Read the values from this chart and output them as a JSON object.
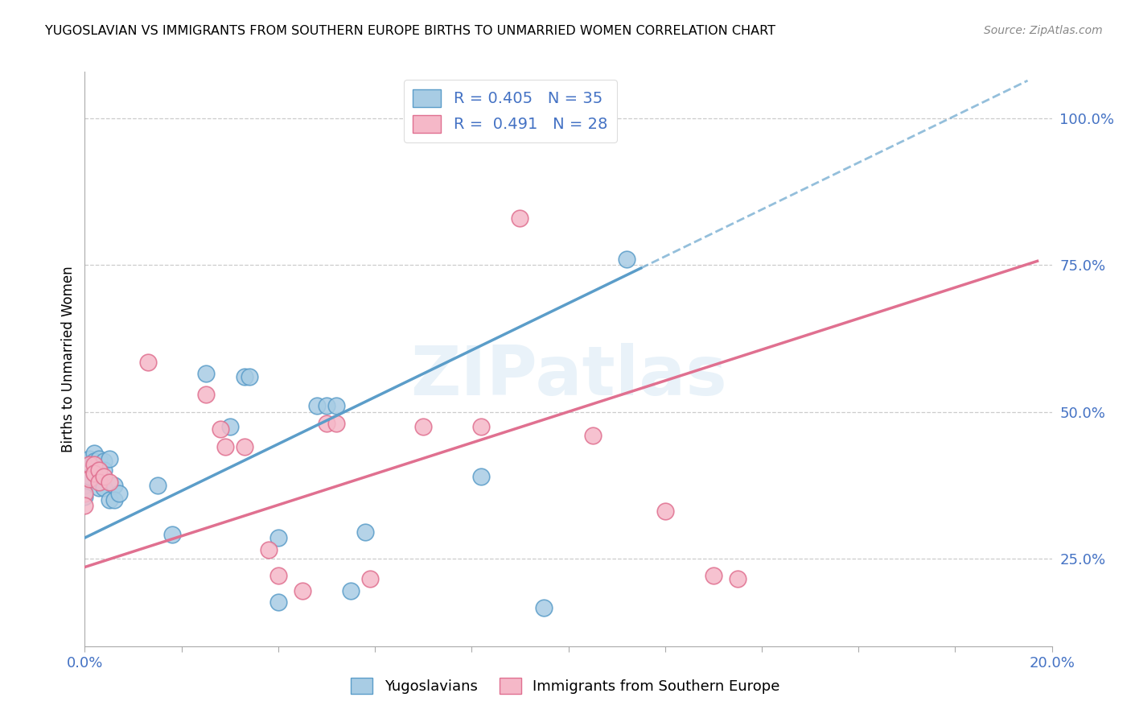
{
  "title": "YUGOSLAVIAN VS IMMIGRANTS FROM SOUTHERN EUROPE BIRTHS TO UNMARRIED WOMEN CORRELATION CHART",
  "source": "Source: ZipAtlas.com",
  "ylabel": "Births to Unmarried Women",
  "ytick_labels": [
    "25.0%",
    "50.0%",
    "75.0%",
    "100.0%"
  ],
  "ytick_values": [
    0.25,
    0.5,
    0.75,
    1.0
  ],
  "blue_R": 0.405,
  "blue_N": 35,
  "pink_R": 0.491,
  "pink_N": 28,
  "legend_label_blue": "Yugoslavians",
  "legend_label_pink": "Immigrants from Southern Europe",
  "blue_color": "#a8cce4",
  "blue_edge": "#5b9dc9",
  "pink_color": "#f5b8c8",
  "pink_edge": "#e07090",
  "watermark": "ZIPatlas",
  "xlim": [
    0.0,
    0.2
  ],
  "ylim": [
    0.1,
    1.08
  ],
  "blue_scatter": [
    [
      0.0,
      0.375
    ],
    [
      0.0,
      0.355
    ],
    [
      0.001,
      0.42
    ],
    [
      0.001,
      0.39
    ],
    [
      0.002,
      0.43
    ],
    [
      0.002,
      0.415
    ],
    [
      0.002,
      0.395
    ],
    [
      0.003,
      0.42
    ],
    [
      0.003,
      0.4
    ],
    [
      0.003,
      0.385
    ],
    [
      0.003,
      0.37
    ],
    [
      0.004,
      0.415
    ],
    [
      0.004,
      0.4
    ],
    [
      0.004,
      0.37
    ],
    [
      0.005,
      0.42
    ],
    [
      0.005,
      0.35
    ],
    [
      0.006,
      0.375
    ],
    [
      0.006,
      0.35
    ],
    [
      0.007,
      0.36
    ],
    [
      0.015,
      0.375
    ],
    [
      0.018,
      0.29
    ],
    [
      0.025,
      0.565
    ],
    [
      0.03,
      0.475
    ],
    [
      0.033,
      0.56
    ],
    [
      0.034,
      0.56
    ],
    [
      0.04,
      0.175
    ],
    [
      0.04,
      0.285
    ],
    [
      0.048,
      0.51
    ],
    [
      0.05,
      0.51
    ],
    [
      0.052,
      0.51
    ],
    [
      0.055,
      0.195
    ],
    [
      0.058,
      0.295
    ],
    [
      0.082,
      0.39
    ],
    [
      0.095,
      0.165
    ],
    [
      0.112,
      0.76
    ]
  ],
  "pink_scatter": [
    [
      0.0,
      0.36
    ],
    [
      0.0,
      0.34
    ],
    [
      0.001,
      0.41
    ],
    [
      0.001,
      0.385
    ],
    [
      0.002,
      0.41
    ],
    [
      0.002,
      0.395
    ],
    [
      0.003,
      0.4
    ],
    [
      0.003,
      0.38
    ],
    [
      0.004,
      0.39
    ],
    [
      0.005,
      0.38
    ],
    [
      0.013,
      0.585
    ],
    [
      0.025,
      0.53
    ],
    [
      0.028,
      0.47
    ],
    [
      0.029,
      0.44
    ],
    [
      0.033,
      0.44
    ],
    [
      0.038,
      0.265
    ],
    [
      0.04,
      0.22
    ],
    [
      0.045,
      0.195
    ],
    [
      0.05,
      0.48
    ],
    [
      0.052,
      0.48
    ],
    [
      0.059,
      0.215
    ],
    [
      0.07,
      0.475
    ],
    [
      0.082,
      0.475
    ],
    [
      0.09,
      0.83
    ],
    [
      0.105,
      0.46
    ],
    [
      0.12,
      0.33
    ],
    [
      0.13,
      0.22
    ],
    [
      0.135,
      0.215
    ]
  ]
}
